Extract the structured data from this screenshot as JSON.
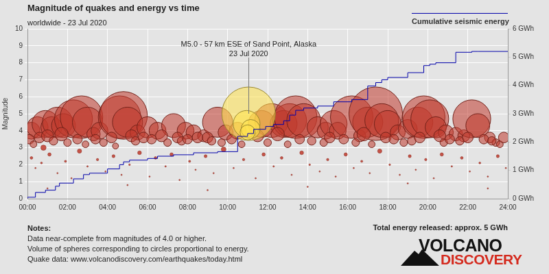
{
  "chart_data": {
    "type": "scatter",
    "title": "Magnitude of quakes and energy vs time",
    "subtitle": "worldwide - 23 Jul 2020",
    "y_label": "Magnitude",
    "xlim": [
      0,
      24
    ],
    "xticks": [
      {
        "value": 0,
        "label": "00:00"
      },
      {
        "value": 2,
        "label": "02:00"
      },
      {
        "value": 4,
        "label": "04:00"
      },
      {
        "value": 6,
        "label": "06:00"
      },
      {
        "value": 8,
        "label": "08:00"
      },
      {
        "value": 10,
        "label": "10:00"
      },
      {
        "value": 12,
        "label": "12:00"
      },
      {
        "value": 14,
        "label": "14:00"
      },
      {
        "value": 16,
        "label": "16:00"
      },
      {
        "value": 18,
        "label": "18:00"
      },
      {
        "value": 20,
        "label": "20:00"
      },
      {
        "value": 22,
        "label": "22:00"
      },
      {
        "value": 24,
        "label": "24:00"
      }
    ],
    "ylim": [
      0,
      10
    ],
    "yticks": [
      0,
      1,
      2,
      3,
      4,
      5,
      6,
      7,
      8,
      9,
      10
    ],
    "y2lim": [
      0,
      6
    ],
    "y2ticks": [
      {
        "value": 0,
        "label": "0 GWh"
      },
      {
        "value": 1,
        "label": "1 GWh"
      },
      {
        "value": 2,
        "label": "2 GWh"
      },
      {
        "value": 3,
        "label": "3 GWh"
      },
      {
        "value": 4,
        "label": "4 GWh"
      },
      {
        "value": 5,
        "label": "5 GWh"
      },
      {
        "value": 6,
        "label": "6 GWh"
      }
    ],
    "grid": true,
    "legend": "upper right",
    "series": [
      {
        "name": "Cumulative seismic energy",
        "type": "line",
        "axis": "y2",
        "color": "#0000aa",
        "line_style": "steps",
        "x": [
          0,
          0.4,
          0.9,
          1.4,
          1.6,
          2.3,
          2.8,
          3.1,
          4.0,
          4.6,
          4.8,
          5.1,
          6.0,
          6.5,
          7.3,
          8.3,
          9.5,
          10.5,
          11.0,
          11.3,
          11.9,
          12.3,
          12.8,
          13.1,
          13.4,
          13.8,
          14.5,
          15.3,
          16.2,
          17.0,
          17.4,
          17.7,
          18.0,
          19.0,
          19.8,
          20.1,
          20.4,
          21.4,
          22.2,
          22.5,
          24
        ],
        "values": [
          0,
          0.05,
          0.22,
          0.3,
          0.44,
          0.55,
          0.7,
          0.85,
          0.9,
          1.05,
          1.2,
          1.3,
          1.36,
          1.42,
          1.5,
          1.55,
          1.62,
          1.66,
          2.2,
          2.3,
          2.45,
          2.55,
          2.62,
          2.75,
          2.95,
          3.12,
          3.2,
          3.27,
          3.42,
          3.5,
          3.98,
          4.1,
          4.2,
          4.28,
          4.45,
          4.7,
          4.75,
          4.8,
          5.17,
          5.2,
          5.2
        ]
      }
    ],
    "quakes": {
      "color": "#c0392b",
      "x": [
        0.2,
        0.5,
        0.9,
        1.2,
        1.5,
        1.8,
        2.3,
        2.7,
        3.0,
        3.3,
        3.6,
        4.6,
        4.8,
        5.0,
        5.5,
        6.0,
        6.5,
        7.3,
        7.9,
        8.3,
        8.8,
        9.5,
        9.9,
        10.5,
        11.7,
        12.2,
        12.8,
        13.1,
        13.4,
        13.8,
        14.5,
        14.9,
        15.3,
        15.5,
        16.2,
        16.6,
        17.0,
        17.4,
        17.7,
        18.0,
        18.5,
        19.0,
        19.5,
        19.8,
        20.1,
        20.4,
        20.9,
        21.4,
        21.8,
        22.2,
        22.5,
        23.1,
        23.4,
        0.1,
        0.3,
        0.6,
        0.8,
        1.0,
        1.3,
        1.7,
        2.0,
        2.5,
        2.9,
        3.4,
        3.8,
        4.2,
        4.4,
        5.2,
        5.4,
        5.8,
        6.2,
        6.7,
        7.0,
        7.5,
        7.7,
        8.0,
        8.5,
        9.0,
        9.2,
        9.7,
        10.2,
        10.7,
        11.5,
        12.0,
        12.5,
        13.0,
        13.6,
        14.2,
        14.8,
        15.1,
        15.8,
        16.4,
        16.8,
        17.2,
        17.9,
        18.3,
        18.8,
        19.2,
        19.6,
        20.6,
        20.8,
        21.1,
        21.6,
        22.0,
        22.8,
        23.2,
        23.6,
        23.8,
        0.2,
        0.4,
        0.7,
        1.1,
        1.5,
        1.9,
        2.2,
        2.6,
        3.0,
        3.5,
        3.9,
        4.3,
        4.7,
        5.1,
        5.6,
        6.1,
        6.4,
        6.9,
        7.2,
        7.6,
        8.1,
        8.4,
        8.9,
        9.3,
        9.8,
        10.3,
        10.8,
        11.4,
        11.8,
        12.3,
        12.7,
        13.2,
        13.7,
        14.1,
        14.6,
        15.0,
        15.4,
        15.9,
        16.3,
        16.7,
        17.1,
        17.6,
        18.1,
        18.6,
        19.1,
        19.4,
        19.9,
        20.3,
        20.7,
        21.2,
        21.7,
        22.1,
        22.6,
        23.0,
        23.5,
        23.9,
        1.0,
        5.0,
        9.0,
        14.0,
        19.0,
        23.0
      ],
      "values": [
        4.0,
        4.2,
        4.4,
        4.2,
        4.5,
        4.3,
        4.7,
        4.8,
        4.5,
        3.8,
        4.0,
        4.8,
        4.9,
        4.5,
        3.9,
        4.2,
        4.0,
        4.3,
        4.0,
        3.9,
        3.7,
        4.5,
        3.9,
        4.0,
        4.4,
        4.6,
        4.4,
        4.6,
        4.8,
        4.6,
        4.2,
        4.0,
        4.4,
        4.0,
        4.8,
        3.7,
        4.5,
        5.0,
        4.6,
        4.4,
        3.9,
        4.1,
        4.5,
        4.8,
        4.7,
        4.2,
        3.9,
        3.8,
        3.7,
        4.7,
        4.3,
        3.6,
        3.3,
        3.5,
        3.2,
        3.6,
        3.0,
        3.7,
        3.4,
        3.8,
        3.3,
        3.5,
        3.2,
        3.5,
        3.3,
        3.6,
        3.1,
        3.7,
        3.4,
        3.6,
        3.5,
        3.7,
        3.3,
        3.6,
        3.4,
        3.5,
        3.6,
        3.6,
        3.4,
        3.3,
        3.5,
        3.2,
        3.7,
        3.3,
        3.8,
        3.2,
        3.5,
        3.4,
        3.3,
        3.6,
        3.5,
        3.3,
        3.8,
        3.2,
        3.6,
        3.5,
        3.3,
        3.4,
        3.6,
        3.7,
        3.3,
        3.5,
        3.4,
        3.6,
        3.5,
        3.4,
        3.2,
        3.6,
        2.4,
        1.8,
        2.1,
        2.6,
        1.5,
        2.2,
        1.2,
        2.8,
        1.9,
        2.3,
        1.6,
        2.5,
        1.4,
        2.0,
        2.7,
        1.3,
        2.4,
        1.9,
        2.6,
        1.1,
        2.2,
        1.7,
        2.5,
        1.5,
        2.9,
        1.8,
        2.3,
        1.2,
        2.6,
        1.9,
        2.4,
        1.4,
        2.7,
        2.0,
        1.6,
        2.3,
        1.3,
        2.6,
        1.8,
        2.2,
        1.5,
        2.8,
        2.0,
        1.4,
        2.5,
        1.7,
        2.3,
        1.2,
        2.6,
        1.9,
        2.4,
        1.6,
        2.1,
        1.3,
        2.5,
        1.8,
        0.6,
        0.8,
        0.5,
        0.7,
        0.9,
        0.6
      ]
    },
    "highlight": {
      "color": "#ffe14d",
      "label": "M5.0 - 57 km ESE of Sand Point, Alaska",
      "date": "23 Jul 2020",
      "x": [
        11.05,
        10.95,
        11.15,
        11.0
      ],
      "values": [
        5.0,
        4.4,
        4.1,
        3.9
      ]
    },
    "notes_title": "Notes:",
    "notes": [
      "Data near-complete from magnitudes of 4.0 or higher.",
      "Volume of spheres corresponding to circles proportional to energy.",
      "Quake data: www.volcanodiscovery.com/earthquakes/today.html"
    ],
    "total": "Total energy released: approx. 5 GWh",
    "logo": [
      "VOLCANO",
      "DISCOVERY"
    ]
  }
}
